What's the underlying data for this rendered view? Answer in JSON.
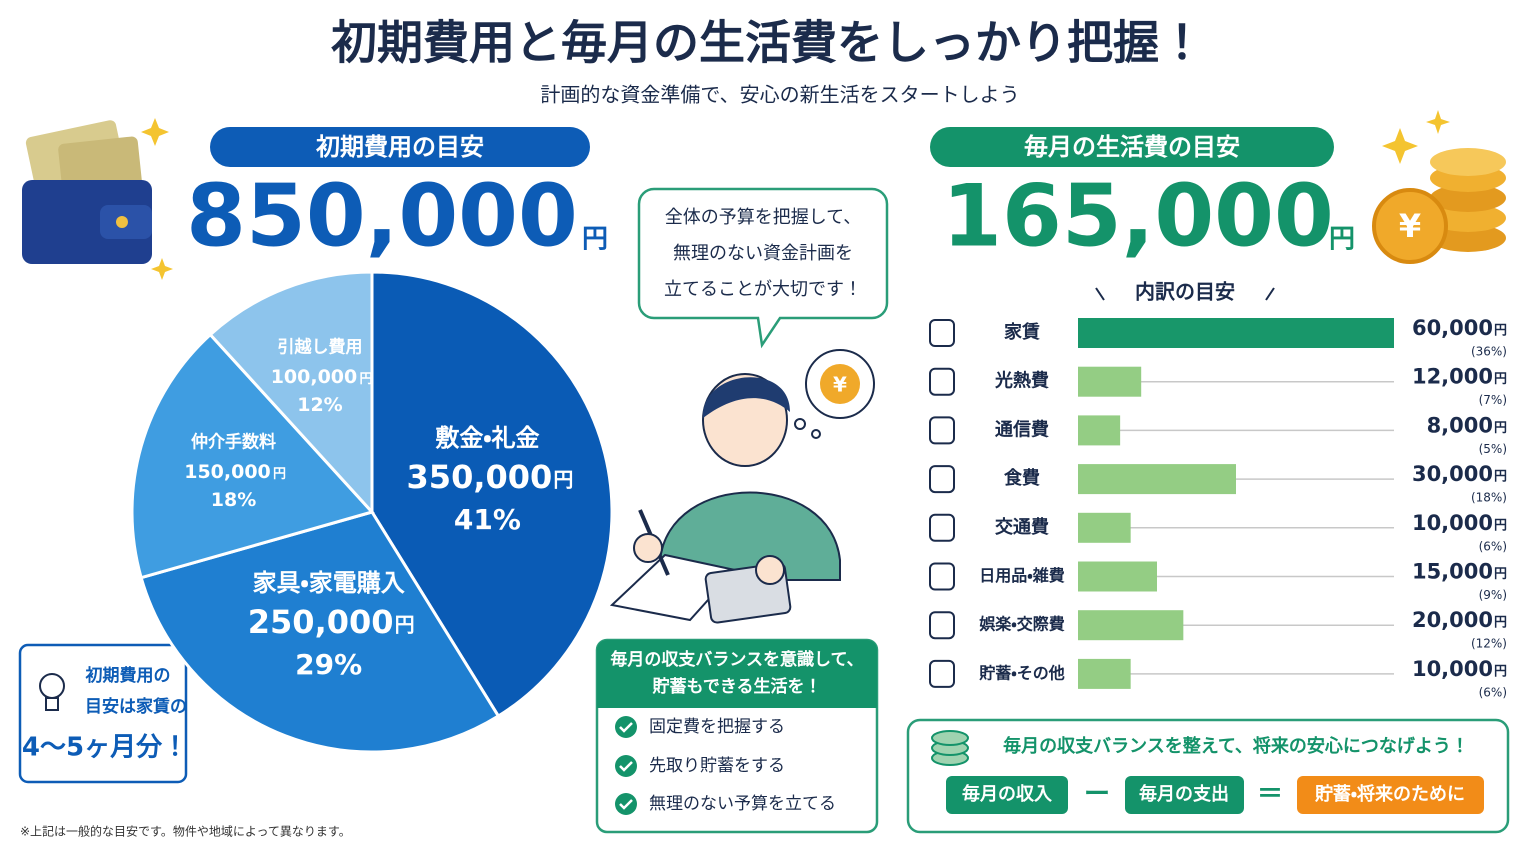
{
  "header": {
    "title": "初期費用と毎月の生活費をしっかり把握！",
    "subtitle": "計画的な資金準備で、安心の新生活をスタートしよう"
  },
  "initial": {
    "heading": "初期費用の目安",
    "total": "850,000",
    "unit": "円"
  },
  "monthly": {
    "heading": "毎月の生活費の目安",
    "total": "165,000",
    "unit": "円",
    "breakdown_heading": "内訳の目安"
  },
  "chart_data": [
    {
      "type": "pie",
      "categories": [
        "敷金・礼金",
        "家具・家電購入",
        "仲介手数料",
        "引越し費用"
      ],
      "values": [
        350000,
        250000,
        150000,
        100000
      ],
      "value_labels": [
        "350,000",
        "250,000",
        "150,000",
        "100,000"
      ],
      "unit": "円",
      "percents": [
        41,
        29,
        18,
        12
      ],
      "percent_labels": [
        "41%",
        "29%",
        "18%",
        "12%"
      ],
      "colors": [
        "#0a5bb5",
        "#1f7fd1",
        "#3f9de1",
        "#8dc4ec"
      ]
    },
    {
      "type": "hbar",
      "categories": [
        "家賃",
        "光熱費",
        "通信費",
        "食費",
        "交通費",
        "日用品・雑費",
        "娯楽・交際費",
        "貯蓄・その他"
      ],
      "values": [
        60000,
        12000,
        8000,
        30000,
        10000,
        15000,
        20000,
        10000
      ],
      "value_labels": [
        "60,000",
        "12,000",
        "8,000",
        "30,000",
        "10,000",
        "15,000",
        "20,000",
        "10,000"
      ],
      "unit": "円",
      "percents": [
        36,
        7,
        5,
        18,
        6,
        9,
        12,
        6
      ],
      "percent_labels": [
        "(36%)",
        "(7%)",
        "(5%)",
        "(18%)",
        "(6%)",
        "(9%)",
        "(12%)",
        "(6%)"
      ],
      "xlim": [
        0,
        60000
      ],
      "colors": [
        "#18976a",
        "#94cd84",
        "#94cd84",
        "#94cd84",
        "#94cd84",
        "#94cd84",
        "#94cd84",
        "#94cd84"
      ]
    }
  ],
  "tip": {
    "lines": [
      "初期費用の",
      "目安は家賃の",
      "4〜5ヶ月分！"
    ]
  },
  "speech": {
    "lines": [
      "全体の予算を把握して、",
      "無理のない資金計画を",
      "立てることが大切です！"
    ]
  },
  "checklist": {
    "title_lines": [
      "毎月の収支バランスを意識して、",
      "貯蓄もできる生活を！"
    ],
    "items": [
      "固定費を把握する",
      "先取り貯蓄をする",
      "無理のない予算を立てる"
    ]
  },
  "balance": {
    "title": "毎月の収支バランスを整えて、将来の安心につなげよう！",
    "income": "毎月の収入",
    "minus": "ー",
    "expense": "毎月の支出",
    "equals": "＝",
    "result": "貯蓄・将来のために"
  },
  "footnote": "※上記は一般的な目安です。物件や地域によって異なります。"
}
